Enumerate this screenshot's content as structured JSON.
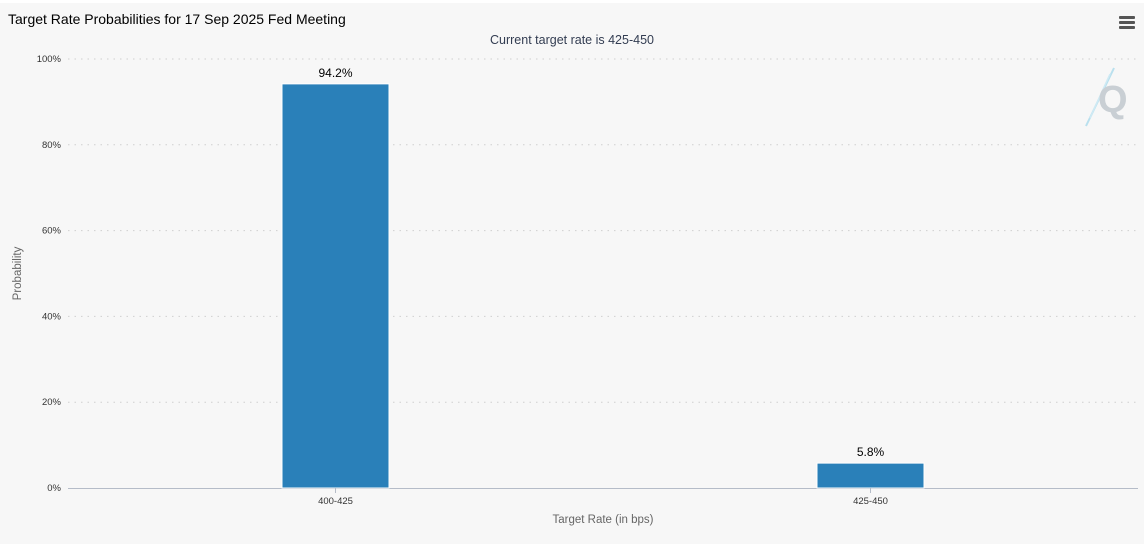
{
  "header": {
    "title": "Target Rate Probabilities for 17 Sep 2025 Fed Meeting",
    "menu_icon": "hamburger-menu-icon"
  },
  "logo": {
    "letter": "Q",
    "icon": "quikstrike-logo-icon"
  },
  "chart_data": {
    "type": "bar",
    "title": "Target Rate Probabilities for 17 Sep 2025 Fed Meeting",
    "subtitle": "Current target rate is 425-450",
    "xlabel": "Target Rate (in bps)",
    "ylabel": "Probability",
    "categories": [
      "400-425",
      "425-450"
    ],
    "values": [
      94.2,
      5.8
    ],
    "data_labels": [
      "94.2%",
      "5.8%"
    ],
    "ylim": [
      0,
      100
    ],
    "yticks": [
      0,
      20,
      40,
      60,
      80,
      100
    ],
    "ytick_labels": [
      "0%",
      "20%",
      "40%",
      "60%",
      "80%",
      "100%"
    ],
    "grid": true,
    "legend": "none",
    "bar_color": "#2a80b9"
  }
}
